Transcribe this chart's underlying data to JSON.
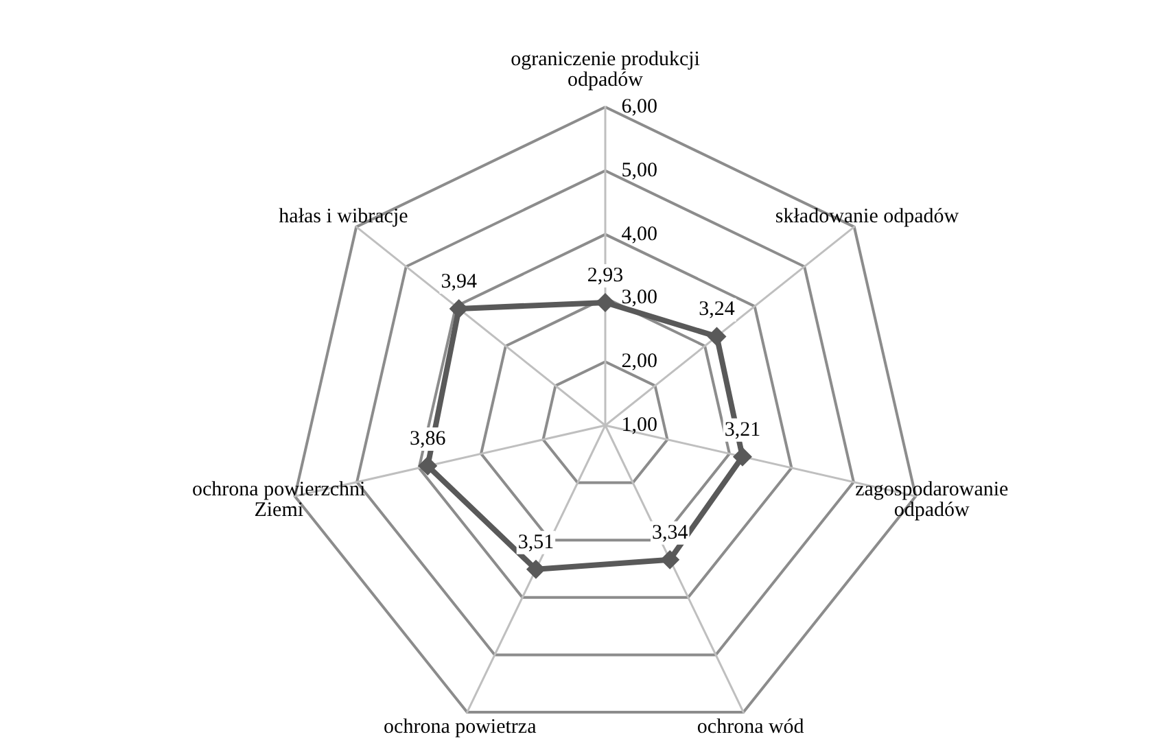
{
  "chart_data": {
    "type": "radar",
    "categories": [
      "ograniczenie produkcji odpadów",
      "składowanie odpadów",
      "zagospodarowanie odpadów",
      "ochrona wód",
      "ochrona powietrza",
      "ochrona powierzchni Ziemi",
      "hałas i wibracje"
    ],
    "series": [
      {
        "color": "#595959",
        "values": [
          2.93,
          3.24,
          3.21,
          3.34,
          3.51,
          3.86,
          3.94
        ],
        "value_labels": [
          "2,93",
          "3,24",
          "3,21",
          "3,34",
          "3,51",
          "3,86",
          "3,94"
        ]
      }
    ],
    "ylim": [
      1,
      6
    ],
    "yticks": [
      {
        "value": 1,
        "label": "1,00"
      },
      {
        "value": 2,
        "label": "2,00"
      },
      {
        "value": 3,
        "label": "3,00"
      },
      {
        "value": 4,
        "label": "4,00"
      },
      {
        "value": 5,
        "label": "5,00"
      },
      {
        "value": 6,
        "label": "6,00"
      }
    ],
    "grid": true,
    "marker": "diamond",
    "line_style": "solid"
  }
}
